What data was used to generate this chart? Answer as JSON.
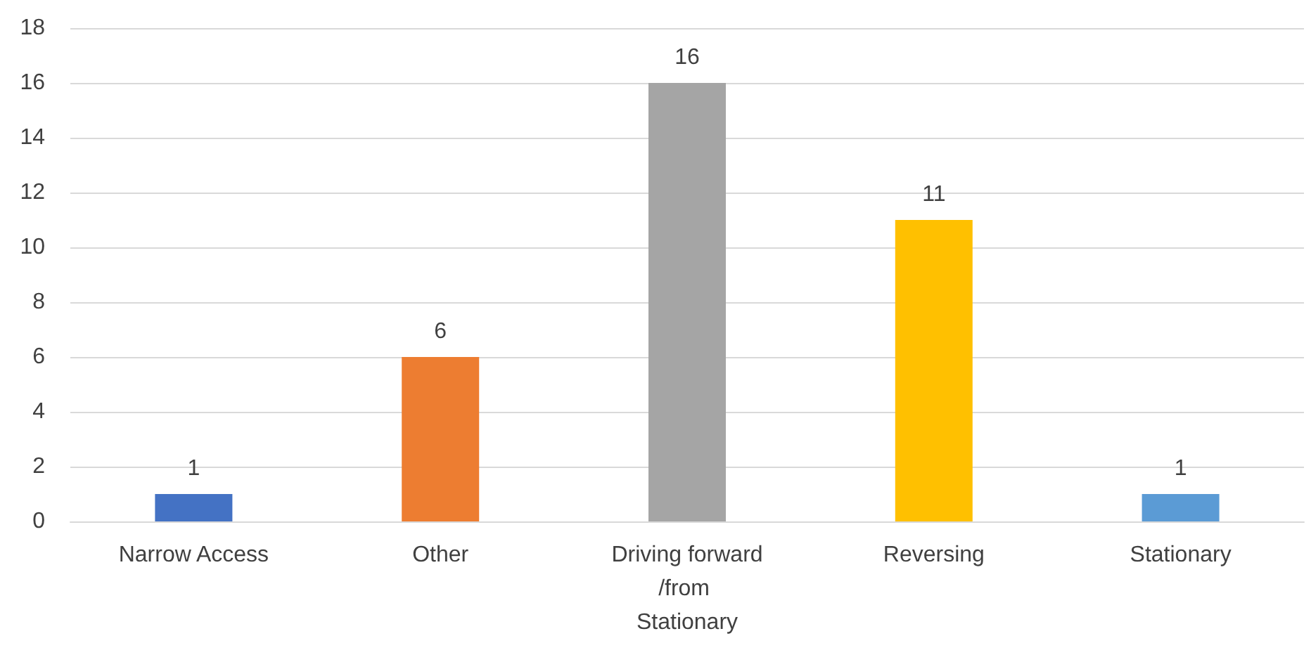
{
  "chart_data": {
    "type": "bar",
    "categories": [
      "Narrow Access",
      "Other",
      "Driving forward/from Stationary",
      "Reversing",
      "Stationary"
    ],
    "values": [
      1,
      6,
      16,
      11,
      1
    ],
    "colors": [
      "#4472c4",
      "#ed7d31",
      "#a5a5a5",
      "#ffc000",
      "#5b9bd5"
    ],
    "ylim": [
      0,
      18
    ],
    "yticks": [
      0,
      2,
      4,
      6,
      8,
      10,
      12,
      14,
      16,
      18
    ],
    "grid": "y",
    "data_labels": true
  }
}
